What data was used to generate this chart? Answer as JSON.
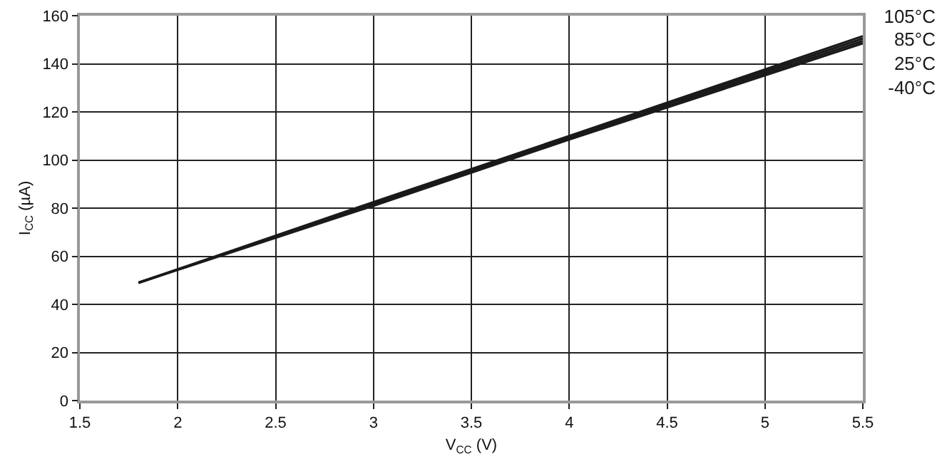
{
  "chart_data": {
    "type": "line",
    "xlabel": "V$_{CC}$ (V)",
    "ylabel": "I$_{CC}$ (µA)",
    "x": [
      1.8,
      3,
      4,
      5.5
    ],
    "series": [
      {
        "name": "105°C",
        "color": "#1a1a1a",
        "values": [
          49,
          82.5,
          110,
          151.5
        ]
      },
      {
        "name": "85°C",
        "color": "#1a1a1a",
        "values": [
          49,
          82,
          109.5,
          150.5
        ]
      },
      {
        "name": "25°C",
        "color": "#1a1a1a",
        "values": [
          49,
          81.5,
          109,
          149.5
        ]
      },
      {
        "name": "-40°C",
        "color": "#1a1a1a",
        "values": [
          49,
          81,
          108.5,
          148.5
        ]
      }
    ],
    "xlim": [
      1.5,
      5.5
    ],
    "xticks": [
      1.5,
      2,
      2.5,
      3,
      3.5,
      4,
      4.5,
      5,
      5.5
    ],
    "ylim": [
      0,
      160
    ],
    "yticks": [
      0,
      20,
      40,
      60,
      80,
      100,
      120,
      140,
      160
    ],
    "grid": true,
    "legend": "right",
    "marker": "none",
    "line_style": "solid"
  }
}
